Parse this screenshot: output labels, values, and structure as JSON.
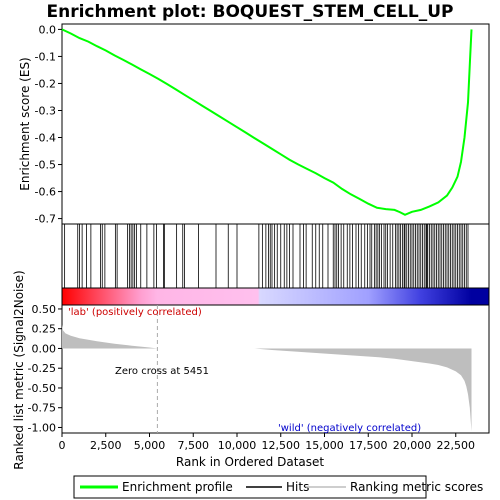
{
  "chart_data": {
    "type": "line",
    "title": "Enrichment plot: BOQUEST_STEM_CELL_UP",
    "top_panel": {
      "ylabel": "Enrichment score (ES)",
      "ylim": [
        -0.72,
        0.02
      ],
      "yticks": [
        0.0,
        -0.1,
        -0.2,
        -0.3,
        -0.4,
        -0.5,
        -0.6,
        -0.7
      ],
      "ytick_labels": [
        "0.0",
        "-0.1",
        "-0.2",
        "-0.3",
        "-0.4",
        "-0.5",
        "-0.6",
        "-0.7"
      ],
      "series": [
        {
          "name": "Enrichment profile",
          "color": "#00ff00",
          "x": [
            0,
            500,
            1000,
            1500,
            2000,
            2500,
            3000,
            3500,
            4000,
            4500,
            5000,
            5500,
            6000,
            6500,
            7000,
            7500,
            8000,
            8500,
            9000,
            9500,
            10000,
            10500,
            11000,
            11500,
            12000,
            12500,
            13000,
            13500,
            14000,
            14500,
            15000,
            15500,
            16000,
            16500,
            17000,
            17500,
            18000,
            18500,
            19000,
            19300,
            19600,
            20000,
            20500,
            21000,
            21500,
            22000,
            22300,
            22600,
            22800,
            23000,
            23200,
            23300,
            23400
          ],
          "y": [
            0.0,
            -0.015,
            -0.032,
            -0.045,
            -0.062,
            -0.078,
            -0.096,
            -0.113,
            -0.13,
            -0.148,
            -0.165,
            -0.183,
            -0.202,
            -0.222,
            -0.242,
            -0.262,
            -0.282,
            -0.302,
            -0.322,
            -0.342,
            -0.362,
            -0.382,
            -0.402,
            -0.422,
            -0.442,
            -0.462,
            -0.482,
            -0.5,
            -0.516,
            -0.532,
            -0.55,
            -0.567,
            -0.59,
            -0.61,
            -0.627,
            -0.645,
            -0.66,
            -0.665,
            -0.668,
            -0.676,
            -0.686,
            -0.675,
            -0.668,
            -0.655,
            -0.64,
            -0.615,
            -0.585,
            -0.545,
            -0.49,
            -0.4,
            -0.27,
            -0.13,
            0.0
          ]
        }
      ]
    },
    "hits": {
      "name": "Hits",
      "color": "#000000",
      "positions": [
        150,
        900,
        1000,
        1150,
        1400,
        1650,
        2200,
        2300,
        2450,
        3050,
        3150,
        3750,
        3850,
        3950,
        4050,
        4150,
        4250,
        4500,
        4850,
        5250,
        5400,
        5800,
        5850,
        6550,
        6900,
        7000,
        7800,
        8800,
        9500,
        10000,
        11250,
        11450,
        11650,
        11800,
        11900,
        12000,
        12150,
        12300,
        12500,
        12700,
        12850,
        13000,
        13200,
        13600,
        13800,
        13950,
        14300,
        14500,
        14700,
        14900,
        15200,
        15500,
        15600,
        15700,
        15800,
        15950,
        16100,
        16300,
        16450,
        16600,
        16800,
        16950,
        17100,
        17300,
        17450,
        17600,
        17700,
        17850,
        17950,
        18050,
        18150,
        18250,
        18400,
        18500,
        18600,
        18750,
        18900,
        19050,
        19150,
        19250,
        19350,
        19450,
        19550,
        19600,
        19700,
        19800,
        19900,
        20000,
        20100,
        20200,
        20300,
        20400,
        20500,
        20600,
        20700,
        20800,
        20850,
        20900,
        21000,
        21100,
        21200,
        21300,
        21400,
        21500,
        21600,
        21700,
        21800,
        21900,
        22000,
        22100,
        22200,
        22300,
        22400,
        22500,
        22600,
        22700,
        22800,
        22900,
        23000,
        23100,
        23200
      ]
    },
    "bottom_panel": {
      "ylabel": "Ranked list metric (Signal2Noise)",
      "xlabel": "Rank in Ordered Dataset",
      "ylim": [
        -1.07,
        0.55
      ],
      "yticks": [
        0.5,
        0.25,
        0.0,
        -0.25,
        -0.5,
        -0.75,
        -1.0
      ],
      "ytick_labels": [
        "0.50",
        "0.25",
        "0.00",
        "-0.25",
        "-0.50",
        "-0.75",
        "-1.00"
      ],
      "series": [
        {
          "name": "Ranking metric scores",
          "color": "#bebebe",
          "x": [
            0,
            50,
            200,
            500,
            1000,
            2000,
            3000,
            4000,
            5000,
            5451,
            6000,
            8000,
            10000,
            11000,
            12000,
            14000,
            16000,
            18000,
            19000,
            20000,
            21000,
            21500,
            22000,
            22500,
            22800,
            23000,
            23100,
            23200,
            23300,
            23400
          ],
          "y": [
            0.3,
            0.23,
            0.19,
            0.16,
            0.13,
            0.09,
            0.06,
            0.035,
            0.012,
            0.0,
            0.0,
            0.0,
            0.0,
            0.0,
            -0.02,
            -0.05,
            -0.08,
            -0.11,
            -0.13,
            -0.16,
            -0.19,
            -0.21,
            -0.24,
            -0.29,
            -0.34,
            -0.41,
            -0.48,
            -0.58,
            -0.75,
            -1.05
          ]
        }
      ],
      "zero_cross": 5451
    },
    "xlim": [
      0,
      24400
    ],
    "xticks": [
      0,
      2500,
      5000,
      7500,
      10000,
      12500,
      15000,
      17500,
      20000,
      22500
    ],
    "xtick_labels": [
      "0",
      "2,500",
      "5,000",
      "7,500",
      "10,000",
      "12,500",
      "15,000",
      "17,500",
      "20,000",
      "22,500"
    ],
    "color_bar": {
      "stops": [
        {
          "pos": 0,
          "color": "#ff0000"
        },
        {
          "pos": 4500,
          "color": "#ff9fd0"
        },
        {
          "pos": 5451,
          "color": "#ffb6e6"
        },
        {
          "pos": 11200,
          "color": "#ffc0ee"
        },
        {
          "pos": 11300,
          "color": "#d8d8ff"
        },
        {
          "pos": 17500,
          "color": "#a0a0ff"
        },
        {
          "pos": 20500,
          "color": "#4040e0"
        },
        {
          "pos": 23400,
          "color": "#0000a0"
        }
      ]
    },
    "annotations": {
      "positive": "'lab' (positively correlated)",
      "negative": "'wild' (negatively correlated)",
      "zero_cross": "Zero cross at 5451"
    },
    "legend": [
      {
        "label": "Enrichment profile",
        "color": "#00ff00",
        "kind": "line"
      },
      {
        "label": "Hits",
        "color": "#000000",
        "kind": "line"
      },
      {
        "label": "Ranking metric scores",
        "color": "#bebebe",
        "kind": "line"
      }
    ]
  }
}
